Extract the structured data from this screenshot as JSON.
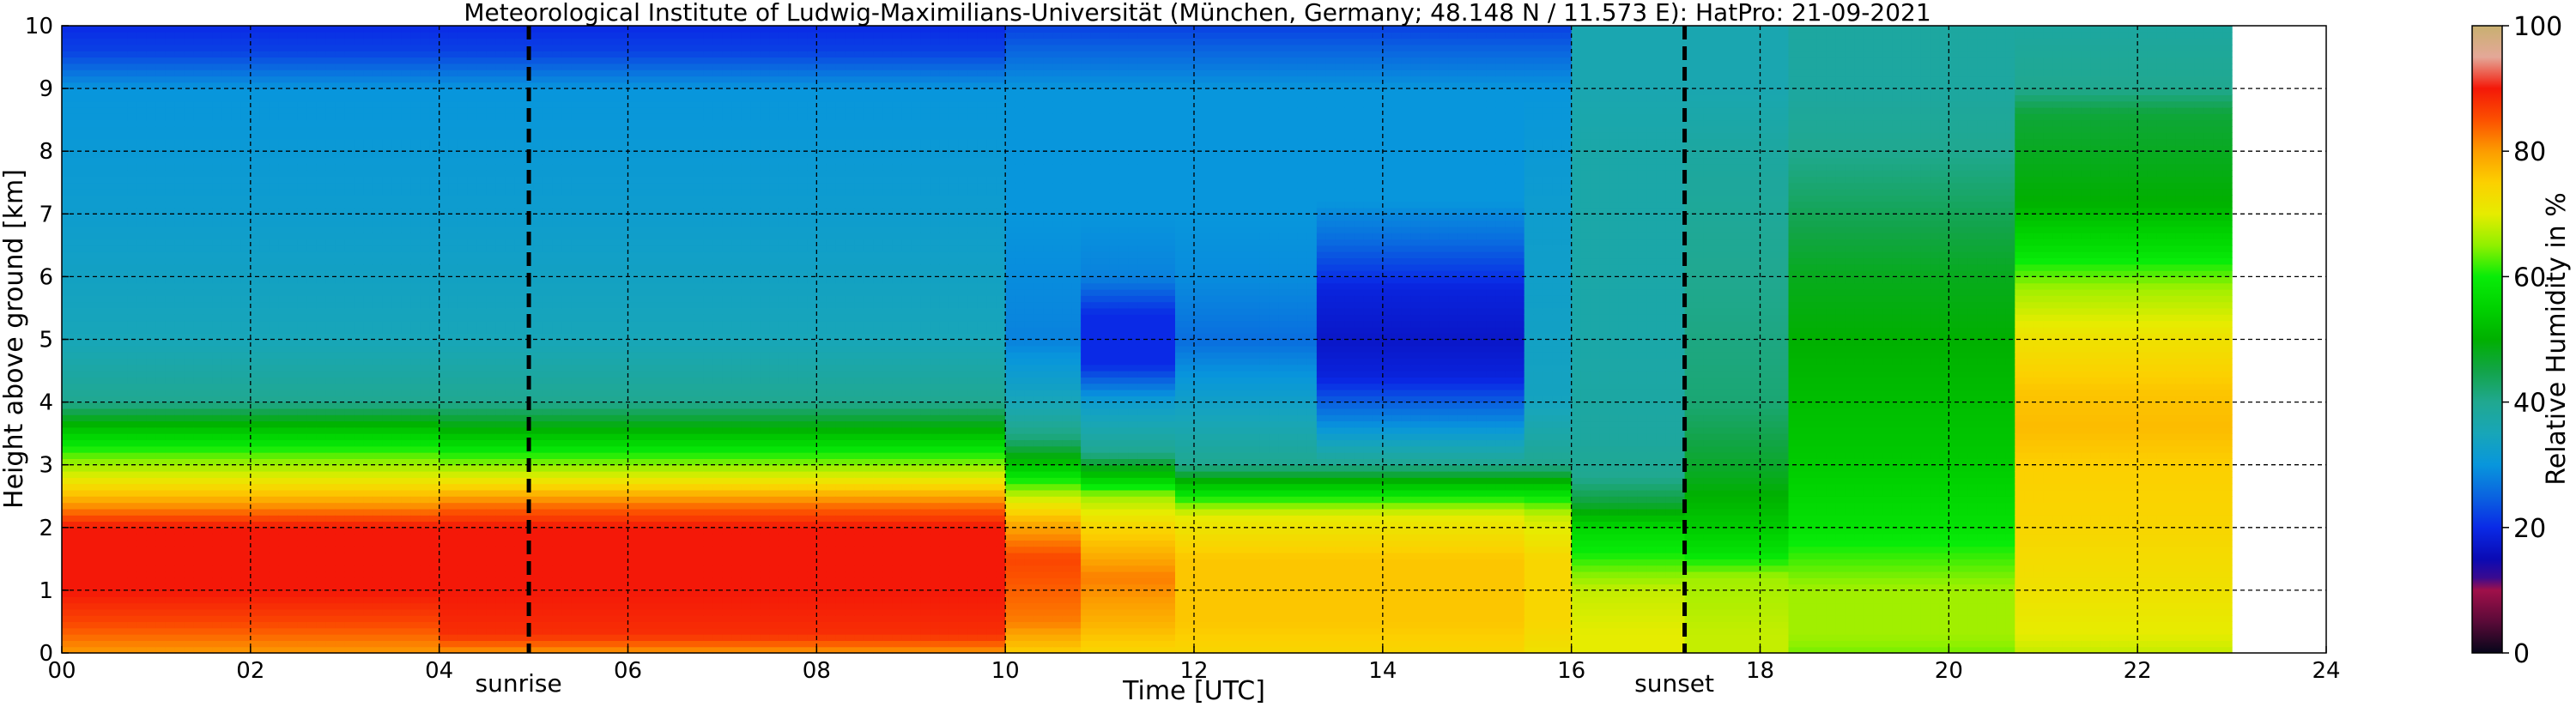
{
  "chart_data": {
    "type": "heatmap",
    "title": "Meteorological Institute of Ludwig-Maximilians-Universität (München, Germany; 48.148 N / 11.573 E):    HatPro: 21-09-2021",
    "xlabel": "Time [UTC]",
    "ylabel": "Height above ground [km]",
    "xlim": [
      0,
      24
    ],
    "ylim": [
      0,
      10
    ],
    "data_extent_x": [
      0,
      23
    ],
    "x_ticks": [
      "00",
      "02",
      "04",
      "06",
      "08",
      "10",
      "12",
      "14",
      "16",
      "18",
      "20",
      "22",
      "24"
    ],
    "y_ticks": [
      "0",
      "1",
      "2",
      "3",
      "4",
      "5",
      "6",
      "7",
      "8",
      "9",
      "10"
    ],
    "grid": true,
    "events": [
      {
        "label": "sunrise",
        "x": 4.95
      },
      {
        "label": "sunset",
        "x": 17.2
      }
    ],
    "colorbar": {
      "label": "Relative Humidity in %",
      "range": [
        0,
        100
      ],
      "ticks": [
        "0",
        "20",
        "40",
        "60",
        "80",
        "100"
      ],
      "stops": [
        [
          0,
          "#06061a"
        ],
        [
          5,
          "#5a0a38"
        ],
        [
          10,
          "#a0104a"
        ],
        [
          12,
          "#3a0a90"
        ],
        [
          15,
          "#0a0ab4"
        ],
        [
          20,
          "#0a2ae6"
        ],
        [
          25,
          "#0a64e0"
        ],
        [
          30,
          "#0896dc"
        ],
        [
          35,
          "#18a6b8"
        ],
        [
          40,
          "#20a890"
        ],
        [
          45,
          "#12a448"
        ],
        [
          50,
          "#00b000"
        ],
        [
          55,
          "#00d200"
        ],
        [
          60,
          "#08ec08"
        ],
        [
          65,
          "#90f000"
        ],
        [
          70,
          "#e6ec00"
        ],
        [
          75,
          "#fcd000"
        ],
        [
          80,
          "#fc9c00"
        ],
        [
          85,
          "#fc5000"
        ],
        [
          90,
          "#f41808"
        ],
        [
          95,
          "#e4a898"
        ],
        [
          100,
          "#c8b070"
        ]
      ]
    },
    "humidity_profiles": [
      {
        "t0": 0.0,
        "t1": 4.0,
        "h": [
          0,
          0.5,
          1.0,
          2.0,
          2.3,
          2.8,
          3.2,
          3.6,
          4.0,
          5.0,
          7.0,
          9.0,
          9.6,
          10.0
        ],
        "rh": [
          80,
          86,
          90,
          90,
          82,
          70,
          62,
          52,
          40,
          35,
          32,
          30,
          22,
          20
        ]
      },
      {
        "t0": 4.0,
        "t1": 10.0,
        "h": [
          0,
          0.3,
          1.0,
          2.0,
          2.4,
          2.8,
          3.2,
          3.5,
          4.0,
          5.0,
          7.0,
          9.0,
          9.6,
          10.0
        ],
        "rh": [
          80,
          88,
          90,
          90,
          82,
          70,
          60,
          52,
          40,
          35,
          32,
          30,
          22,
          20
        ]
      },
      {
        "t0": 10.0,
        "t1": 10.8,
        "h": [
          0,
          0.5,
          1.5,
          2.1,
          2.5,
          2.9,
          3.4,
          4.0,
          5.0,
          7.0,
          9.0,
          10.0
        ],
        "rh": [
          75,
          82,
          86,
          78,
          68,
          56,
          42,
          35,
          28,
          30,
          30,
          22
        ]
      },
      {
        "t0": 10.8,
        "t1": 11.8,
        "h": [
          0,
          0.5,
          1.2,
          2.0,
          2.5,
          2.8,
          3.2,
          4.0,
          4.6,
          5.4,
          6.0,
          7.0,
          9.0,
          10.0
        ],
        "rh": [
          74,
          78,
          82,
          74,
          66,
          54,
          40,
          32,
          20,
          20,
          28,
          30,
          30,
          22
        ]
      },
      {
        "t0": 11.8,
        "t1": 13.3,
        "h": [
          0,
          0.5,
          1.5,
          2.2,
          2.6,
          3.0,
          4.0,
          5.0,
          6.0,
          7.0,
          9.0,
          10.0
        ],
        "rh": [
          74,
          76,
          76,
          70,
          56,
          40,
          33,
          26,
          29,
          30,
          30,
          22
        ]
      },
      {
        "t0": 13.3,
        "t1": 15.5,
        "h": [
          0,
          0.5,
          1.5,
          2.2,
          2.6,
          3.0,
          3.6,
          4.4,
          5.0,
          5.8,
          6.6,
          7.2,
          9.0,
          10.0
        ],
        "rh": [
          74,
          76,
          76,
          70,
          56,
          40,
          30,
          19,
          17,
          19,
          26,
          30,
          30,
          22
        ]
      },
      {
        "t0": 15.5,
        "t1": 16.0,
        "h": [
          0,
          0.5,
          1.5,
          2.2,
          2.6,
          3.0,
          4.0,
          7.0,
          9.0,
          10.0
        ],
        "rh": [
          72,
          74,
          74,
          68,
          56,
          40,
          34,
          32,
          30,
          22
        ]
      },
      {
        "t0": 16.0,
        "t1": 17.2,
        "h": [
          0,
          0.3,
          1.0,
          1.6,
          2.0,
          2.4,
          2.8,
          3.5,
          5.0,
          8.0,
          9.0,
          10.0
        ],
        "rh": [
          70,
          70,
          68,
          60,
          56,
          46,
          40,
          38,
          37,
          37,
          36,
          36
        ]
      },
      {
        "t0": 17.2,
        "t1": 18.3,
        "h": [
          0,
          0.3,
          1.2,
          1.6,
          2.0,
          2.8,
          4.0,
          6.0,
          8.0,
          9.0,
          10.0
        ],
        "rh": [
          68,
          68,
          66,
          58,
          54,
          48,
          42,
          40,
          38,
          36,
          36
        ]
      },
      {
        "t0": 18.3,
        "t1": 20.7,
        "h": [
          0,
          0.3,
          1.0,
          2.0,
          3.0,
          4.0,
          5.0,
          6.0,
          7.0,
          8.0,
          9.0,
          10.0
        ],
        "rh": [
          64,
          66,
          66,
          58,
          54,
          52,
          50,
          48,
          44,
          40,
          38,
          38
        ]
      },
      {
        "t0": 20.7,
        "t1": 23.0,
        "h": [
          0,
          0.3,
          1.0,
          2.0,
          3.0,
          3.6,
          4.2,
          5.0,
          5.8,
          6.4,
          7.2,
          8.6,
          9.0,
          10.0
        ],
        "rh": [
          68,
          70,
          72,
          74,
          75,
          77,
          76,
          72,
          66,
          58,
          50,
          46,
          40,
          38
        ]
      }
    ]
  }
}
